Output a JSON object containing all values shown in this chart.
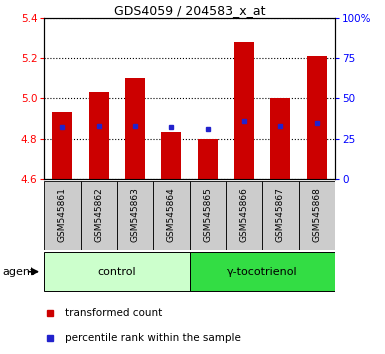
{
  "title": "GDS4059 / 204583_x_at",
  "samples": [
    "GSM545861",
    "GSM545862",
    "GSM545863",
    "GSM545864",
    "GSM545865",
    "GSM545866",
    "GSM545867",
    "GSM545868"
  ],
  "bar_tops": [
    4.93,
    5.03,
    5.1,
    4.83,
    4.8,
    5.28,
    5.0,
    5.21
  ],
  "bar_base": 4.6,
  "blue_y": [
    4.855,
    4.862,
    4.862,
    4.855,
    4.845,
    4.888,
    4.862,
    4.875
  ],
  "ylim": [
    4.6,
    5.4
  ],
  "y2lim": [
    0,
    100
  ],
  "y2ticks": [
    0,
    25,
    50,
    75,
    100
  ],
  "y2ticklabels": [
    "0",
    "25",
    "50",
    "75",
    "100%"
  ],
  "yticks": [
    4.6,
    4.8,
    5.0,
    5.2,
    5.4
  ],
  "bar_color": "#cc0000",
  "blue_color": "#2222cc",
  "control_label": "control",
  "treatment_label": "γ-tocotrienol",
  "agent_label": "agent",
  "control_bg": "#ccffcc",
  "treatment_bg": "#33dd44",
  "xticklabel_bg": "#cccccc",
  "legend_red_label": "transformed count",
  "legend_blue_label": "percentile rank within the sample",
  "bar_width": 0.55
}
